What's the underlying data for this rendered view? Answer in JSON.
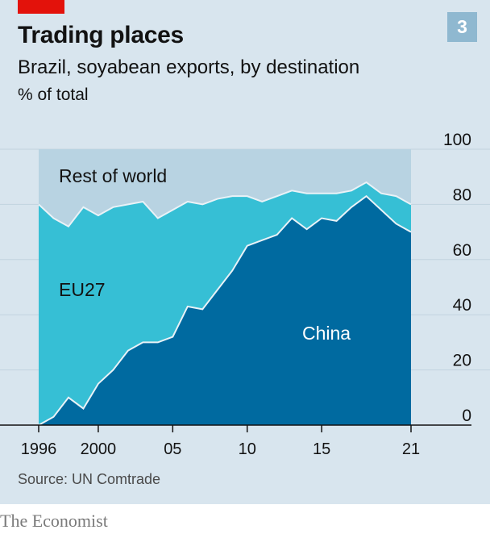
{
  "header": {
    "title": "Trading places",
    "subtitle": "Brazil, soyabean exports, by destination",
    "units": "% of total",
    "chart_number": "3"
  },
  "footer": {
    "source": "Source: UN Comtrade",
    "brand": "The Economist"
  },
  "colors": {
    "panel_bg": "#d8e5ee",
    "rest_of_world": "#b8d3e2",
    "eu27": "#36bfd5",
    "china": "#006aa0",
    "separator": "#e9f2f7",
    "brand_red": "#e3120b",
    "badge": "#8fb8d0"
  },
  "chart_data": {
    "type": "area",
    "stacked": true,
    "x": [
      1996,
      1997,
      1998,
      1999,
      2000,
      2001,
      2002,
      2003,
      2004,
      2005,
      2006,
      2007,
      2008,
      2009,
      2010,
      2011,
      2012,
      2013,
      2014,
      2015,
      2016,
      2017,
      2018,
      2019,
      2020,
      2021
    ],
    "series": [
      {
        "name": "China",
        "values": [
          0,
          3,
          10,
          6,
          15,
          20,
          27,
          30,
          30,
          32,
          43,
          42,
          49,
          56,
          65,
          67,
          69,
          75,
          71,
          75,
          74,
          79,
          83,
          78,
          73,
          70
        ]
      },
      {
        "name": "EU27",
        "values": [
          80,
          72,
          62,
          73,
          61,
          59,
          53,
          51,
          45,
          46,
          38,
          38,
          33,
          27,
          18,
          14,
          14,
          10,
          13,
          9,
          10,
          6,
          5,
          6,
          10,
          10
        ]
      },
      {
        "name": "Rest of world",
        "values": [
          20,
          25,
          28,
          21,
          24,
          21,
          20,
          19,
          25,
          22,
          19,
          20,
          18,
          17,
          17,
          19,
          17,
          15,
          16,
          16,
          16,
          15,
          12,
          16,
          17,
          20
        ]
      }
    ],
    "x_ticks": [
      {
        "value": 1996,
        "label": "1996"
      },
      {
        "value": 2000,
        "label": "2000"
      },
      {
        "value": 2005,
        "label": "05"
      },
      {
        "value": 2010,
        "label": "10"
      },
      {
        "value": 2015,
        "label": "15"
      },
      {
        "value": 2021,
        "label": "21"
      }
    ],
    "y_ticks": [
      {
        "value": 0,
        "label": "0"
      },
      {
        "value": 20,
        "label": "20"
      },
      {
        "value": 40,
        "label": "40"
      },
      {
        "value": 60,
        "label": "60"
      },
      {
        "value": 80,
        "label": "80"
      },
      {
        "value": 100,
        "label": "100"
      }
    ],
    "xlim": [
      1996,
      2021
    ],
    "ylim": [
      0,
      100
    ],
    "y_axis_side": "right",
    "grid": true,
    "legend": "inline labels",
    "region_labels": {
      "rest_of_world": "Rest of world",
      "eu27": "EU27",
      "china": "China"
    }
  }
}
